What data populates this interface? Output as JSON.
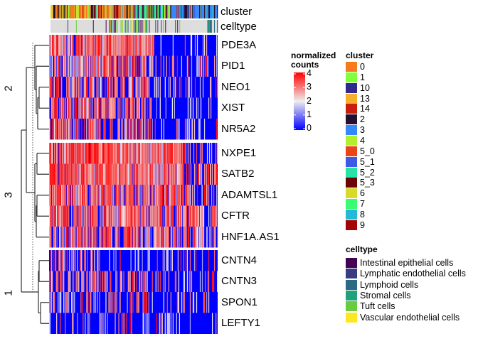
{
  "chart_data": {
    "type": "heatmap",
    "title": "",
    "color_scale": {
      "title_line1": "normalized",
      "title_line2": "counts",
      "min": 0,
      "max": 4,
      "ticks": [
        "0",
        "1",
        "2",
        "3",
        "4"
      ],
      "colors": {
        "low": "#0000FF",
        "mid": "#EEEEEE",
        "high": "#FF0000"
      }
    },
    "row_splits": [
      {
        "label": "2",
        "genes": [
          "PDE3A",
          "PID1",
          "NEO1",
          "XIST",
          "NR5A2"
        ]
      },
      {
        "label": "3",
        "genes": [
          "NXPE1",
          "SATB2",
          "ADAMTSL1",
          "CFTR",
          "HNF1A.AS1"
        ]
      },
      {
        "label": "1",
        "genes": [
          "CNTN4",
          "CNTN3",
          "SPON1",
          "LEFTY1"
        ]
      }
    ],
    "row_profiles": {
      "PDE3A": {
        "left_high": 0.8,
        "right_high": 0.02,
        "split": 0.62
      },
      "PID1": {
        "left_high": 0.55,
        "right_high": 0.12,
        "split": 0.58
      },
      "NEO1": {
        "left_high": 0.55,
        "right_high": 0.12,
        "split": 0.6
      },
      "XIST": {
        "left_high": 0.6,
        "right_high": 0.01,
        "split": 0.6
      },
      "NR5A2": {
        "left_high": 0.45,
        "right_high": 0.08,
        "split": 0.6
      },
      "NXPE1": {
        "left_high": 0.85,
        "right_high": 0.3,
        "split": 0.78
      },
      "SATB2": {
        "left_high": 0.85,
        "right_high": 0.35,
        "split": 0.8
      },
      "ADAMTSL1": {
        "left_high": 0.75,
        "right_high": 0.35,
        "split": 0.82
      },
      "CFTR": {
        "left_high": 0.7,
        "right_high": 0.35,
        "split": 0.92
      },
      "HNF1A.AS1": {
        "left_high": 0.55,
        "right_high": 0.3,
        "split": 0.92
      },
      "CNTN4": {
        "left_high": 0.35,
        "right_high": 0.06,
        "split": 0.3
      },
      "CNTN3": {
        "left_high": 0.4,
        "right_high": 0.12,
        "split": 0.6
      },
      "SPON1": {
        "left_high": 0.25,
        "right_high": 0.06,
        "split": 0.6
      },
      "LEFTY1": {
        "left_high": 0.12,
        "right_high": 0.03,
        "split": 0.5
      }
    },
    "column_annotations": [
      {
        "name": "cluster",
        "label": "cluster"
      },
      {
        "name": "celltype",
        "label": "celltype"
      }
    ],
    "n_columns": 236,
    "cluster_legend": {
      "title": "cluster",
      "items": [
        {
          "label": "0",
          "color": "#F8791E"
        },
        {
          "label": "1",
          "color": "#80FF3A"
        },
        {
          "label": "10",
          "color": "#30278F"
        },
        {
          "label": "13",
          "color": "#F6AE2C"
        },
        {
          "label": "14",
          "color": "#C91D0E"
        },
        {
          "label": "2",
          "color": "#22102F"
        },
        {
          "label": "3",
          "color": "#3488FB"
        },
        {
          "label": "4",
          "color": "#B2F02E"
        },
        {
          "label": "5_0",
          "color": "#EC4419"
        },
        {
          "label": "5_1",
          "color": "#3E59E6"
        },
        {
          "label": "5_2",
          "color": "#28E3A6"
        },
        {
          "label": "5_3",
          "color": "#6A0408"
        },
        {
          "label": "6",
          "color": "#D9D92A"
        },
        {
          "label": "7",
          "color": "#3BFB70"
        },
        {
          "label": "8",
          "color": "#23BAD6"
        },
        {
          "label": "9",
          "color": "#A10505"
        }
      ]
    },
    "celltype_legend": {
      "title": "celltype",
      "items": [
        {
          "label": "Intestinal epithelial cells",
          "color": "#440154"
        },
        {
          "label": "Lymphatic endothelial cells",
          "color": "#3B3C7F"
        },
        {
          "label": "Lymphoid cells",
          "color": "#2A6A83"
        },
        {
          "label": "Stromal cells",
          "color": "#22A07B"
        },
        {
          "label": "Tuft cells",
          "color": "#6BCB3F"
        },
        {
          "label": "Vascular endothelial cells",
          "color": "#FDE725"
        }
      ],
      "na_color": "#DDDDDD"
    },
    "dendrogram": "row dendrogram on left, rows split into 3 groups (2, 3, 1)"
  }
}
